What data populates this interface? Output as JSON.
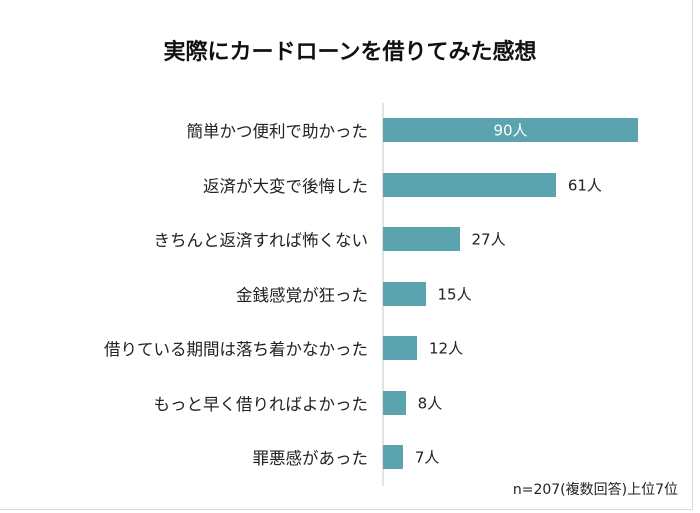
{
  "chart_data": {
    "type": "bar",
    "orientation": "horizontal",
    "title": "実際にカードローンを借りてみた感想",
    "categories": [
      "簡単かつ便利で助かった",
      "返済が大変で後悔した",
      "きちんと返済すれば怖くない",
      "金銭感覚が狂った",
      "借りている期間は落ち着かなかった",
      "もっと早く借りればよかった",
      "罪悪感があった"
    ],
    "values": [
      90,
      61,
      27,
      15,
      12,
      8,
      7
    ],
    "data_labels": [
      "90人",
      "61人",
      "27人",
      "15人",
      "12人",
      "8人",
      "7人"
    ],
    "unit": "人",
    "xlim": [
      0,
      90
    ],
    "grid": false,
    "bar_color": "#5BA3AE",
    "note": "n=207(複数回答)上位7位"
  }
}
